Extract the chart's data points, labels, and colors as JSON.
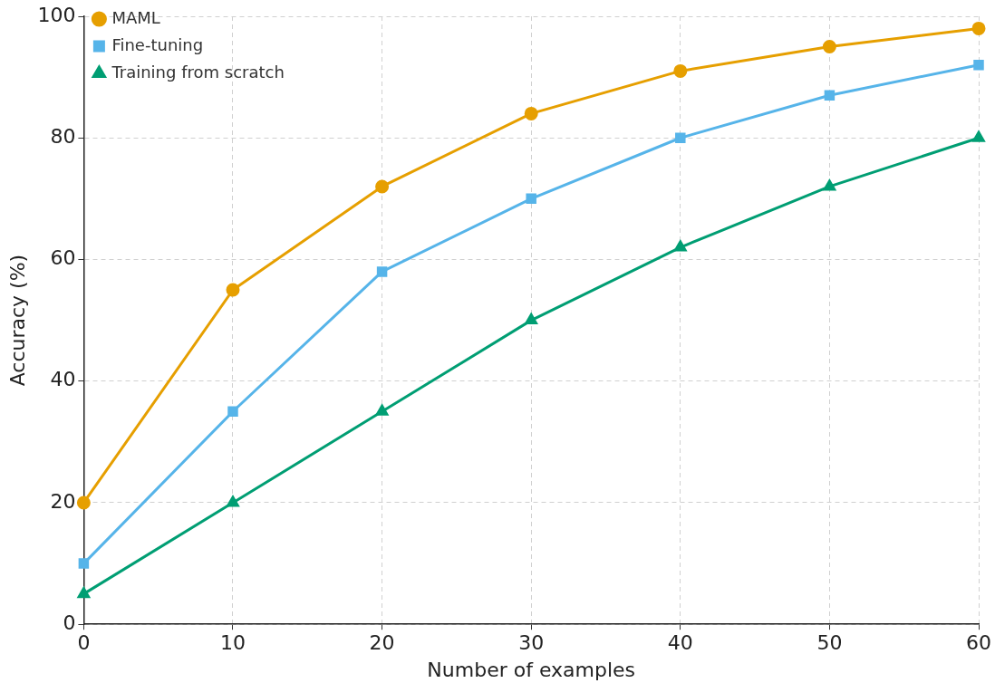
{
  "chart_data": {
    "type": "line",
    "xlabel": "Number of examples",
    "ylabel": "Accuracy (%)",
    "x": [
      0,
      10,
      20,
      30,
      40,
      50,
      60
    ],
    "series": [
      {
        "name": "MAML",
        "color": "#e69f00",
        "marker": "circle",
        "values": [
          20,
          55,
          72,
          84,
          91,
          95,
          98
        ]
      },
      {
        "name": "Fine-tuning",
        "color": "#56b4e9",
        "marker": "square",
        "values": [
          10,
          35,
          58,
          70,
          80,
          87,
          92
        ]
      },
      {
        "name": "Training from scratch",
        "color": "#009e73",
        "marker": "triangle",
        "values": [
          5,
          20,
          35,
          50,
          62,
          72,
          80
        ]
      }
    ],
    "xlim": [
      0,
      60
    ],
    "xticks": [
      0,
      10,
      20,
      30,
      40,
      50,
      60
    ],
    "ylim": [
      0,
      100
    ],
    "yticks": [
      0,
      20,
      40,
      60,
      80,
      100
    ],
    "grid": true,
    "legend": "top left",
    "line_style": "solid"
  }
}
